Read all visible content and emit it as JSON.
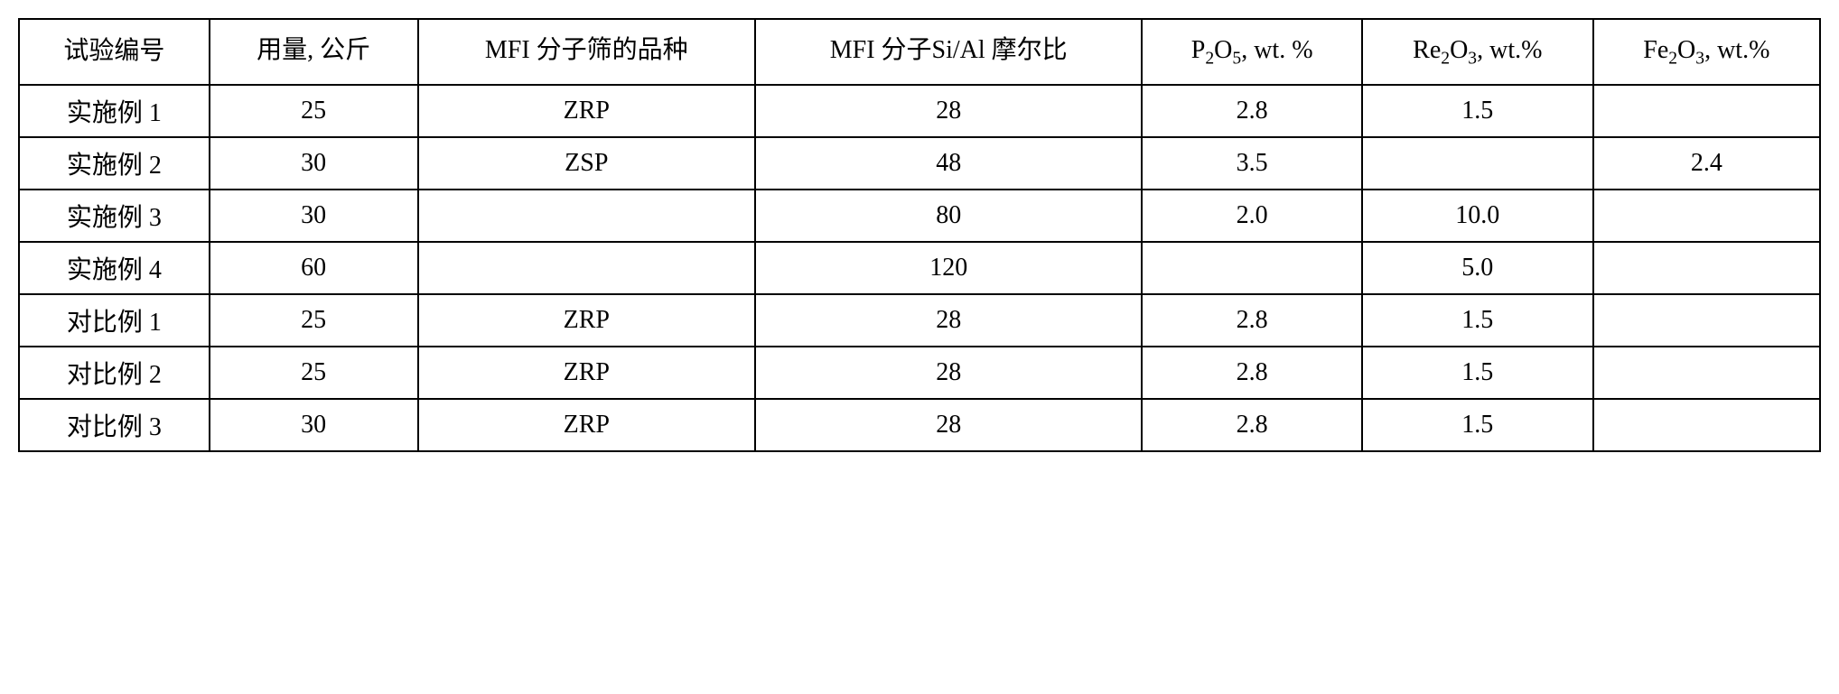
{
  "table": {
    "columns": [
      "试验编号",
      "用量, 公斤",
      "MFI 分子筛的品种",
      "MFI 分子Si/Al 摩尔比",
      "P₂O₅, wt. %",
      "Re₂O₃, wt.%",
      "Fe₂O₃, wt.%"
    ],
    "rows": [
      {
        "label": "实施例 1",
        "amount": "25",
        "mfi_type": "ZRP",
        "si_al_ratio": "28",
        "p2o5": "2.8",
        "re2o3": "1.5",
        "fe2o3": ""
      },
      {
        "label": "实施例 2",
        "amount": "30",
        "mfi_type": "ZSP",
        "si_al_ratio": "48",
        "p2o5": "3.5",
        "re2o3": "",
        "fe2o3": "2.4"
      },
      {
        "label": "实施例 3",
        "amount": "30",
        "mfi_type": "",
        "si_al_ratio": "80",
        "p2o5": "2.0",
        "re2o3": "10.0",
        "fe2o3": ""
      },
      {
        "label": "实施例 4",
        "amount": "60",
        "mfi_type": "",
        "si_al_ratio": "120",
        "p2o5": "",
        "re2o3": "5.0",
        "fe2o3": ""
      },
      {
        "label": "对比例 1",
        "amount": "25",
        "mfi_type": "ZRP",
        "si_al_ratio": "28",
        "p2o5": "2.8",
        "re2o3": "1.5",
        "fe2o3": ""
      },
      {
        "label": "对比例 2",
        "amount": "25",
        "mfi_type": "ZRP",
        "si_al_ratio": "28",
        "p2o5": "2.8",
        "re2o3": "1.5",
        "fe2o3": ""
      },
      {
        "label": "对比例 3",
        "amount": "30",
        "mfi_type": "ZRP",
        "si_al_ratio": "28",
        "p2o5": "2.8",
        "re2o3": "1.5",
        "fe2o3": ""
      }
    ],
    "styling": {
      "border_color": "#000000",
      "border_width": "2px",
      "background_color": "#ffffff",
      "font_family": "Times New Roman, SimSun, serif",
      "font_size": "28px",
      "cell_align": "center",
      "column_widths_pct": [
        12,
        12,
        14,
        14,
        16,
        16,
        16
      ]
    }
  }
}
